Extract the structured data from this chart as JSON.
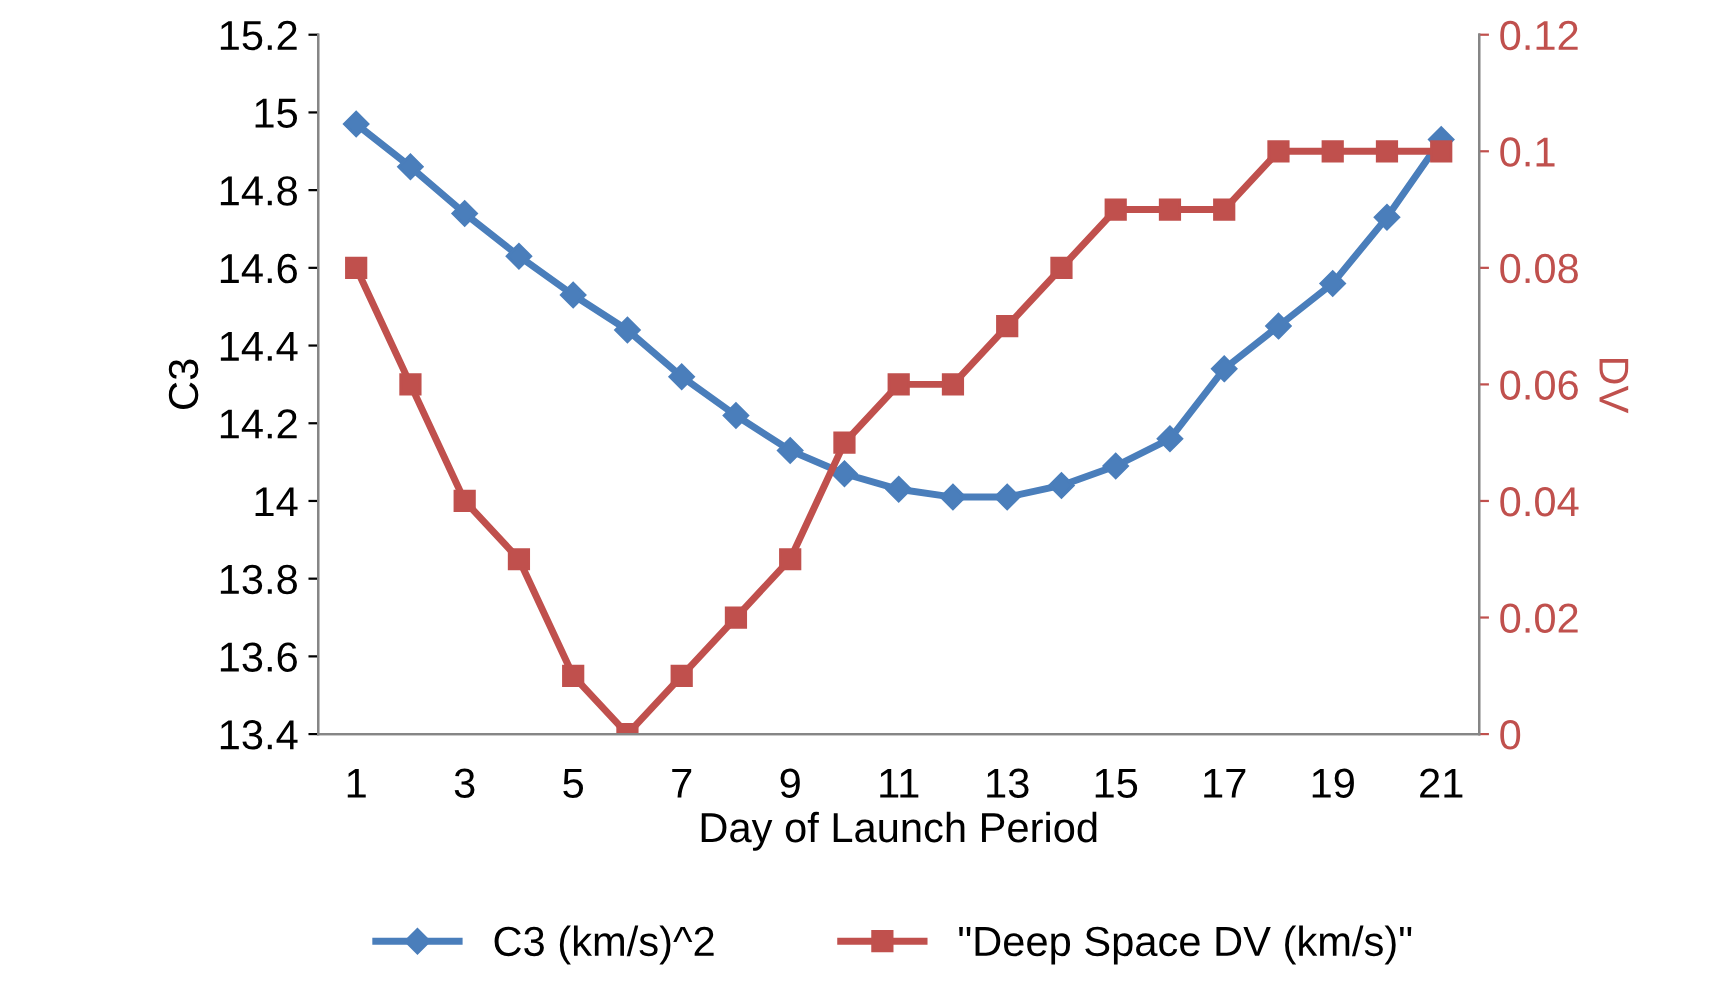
{
  "chart_data": {
    "type": "line",
    "xlabel": "Day of Launch Period",
    "ylabel": "C3",
    "y2label": "DV",
    "categories": [
      "1",
      null,
      "3",
      null,
      "5",
      null,
      "7",
      null,
      "9",
      null,
      "11",
      null,
      "13",
      null,
      "15",
      null,
      "17",
      null,
      "19",
      null,
      "21"
    ],
    "series": [
      {
        "name": "C3 (km/s)^2",
        "color": "#4a7ebb",
        "marker": "diamond",
        "values": [
          14.97,
          14.86,
          14.74,
          14.63,
          14.53,
          14.44,
          14.32,
          14.22,
          14.13,
          14.07,
          14.03,
          14.01,
          14.01,
          14.04,
          14.09,
          14.16,
          14.34,
          14.45,
          14.56,
          14.73,
          14.93
        ]
      },
      {
        "name": "\"Deep Space DV (km/s)\"",
        "color": "#c0504d",
        "marker": "square",
        "axis": "y2",
        "values": [
          0.08,
          0.06,
          0.04,
          0.03,
          0.01,
          0,
          0.01,
          0.02,
          0.03,
          0.05,
          0.06,
          0.06,
          0.07,
          0.08,
          0.09,
          0.09,
          0.09,
          0.1,
          0.1,
          0.1,
          0.1
        ]
      }
    ],
    "ylim": [
      13.4,
      15.2
    ],
    "yticks": [
      13.4,
      13.6,
      13.8,
      14,
      14.2,
      14.4,
      14.6,
      14.8,
      15,
      15.2
    ],
    "y2lim": [
      0,
      0.12
    ],
    "y2ticks": [
      0,
      0.02,
      0.04,
      0.06,
      0.08,
      0.1,
      0.12
    ],
    "grid": false,
    "legend": "bottom"
  }
}
